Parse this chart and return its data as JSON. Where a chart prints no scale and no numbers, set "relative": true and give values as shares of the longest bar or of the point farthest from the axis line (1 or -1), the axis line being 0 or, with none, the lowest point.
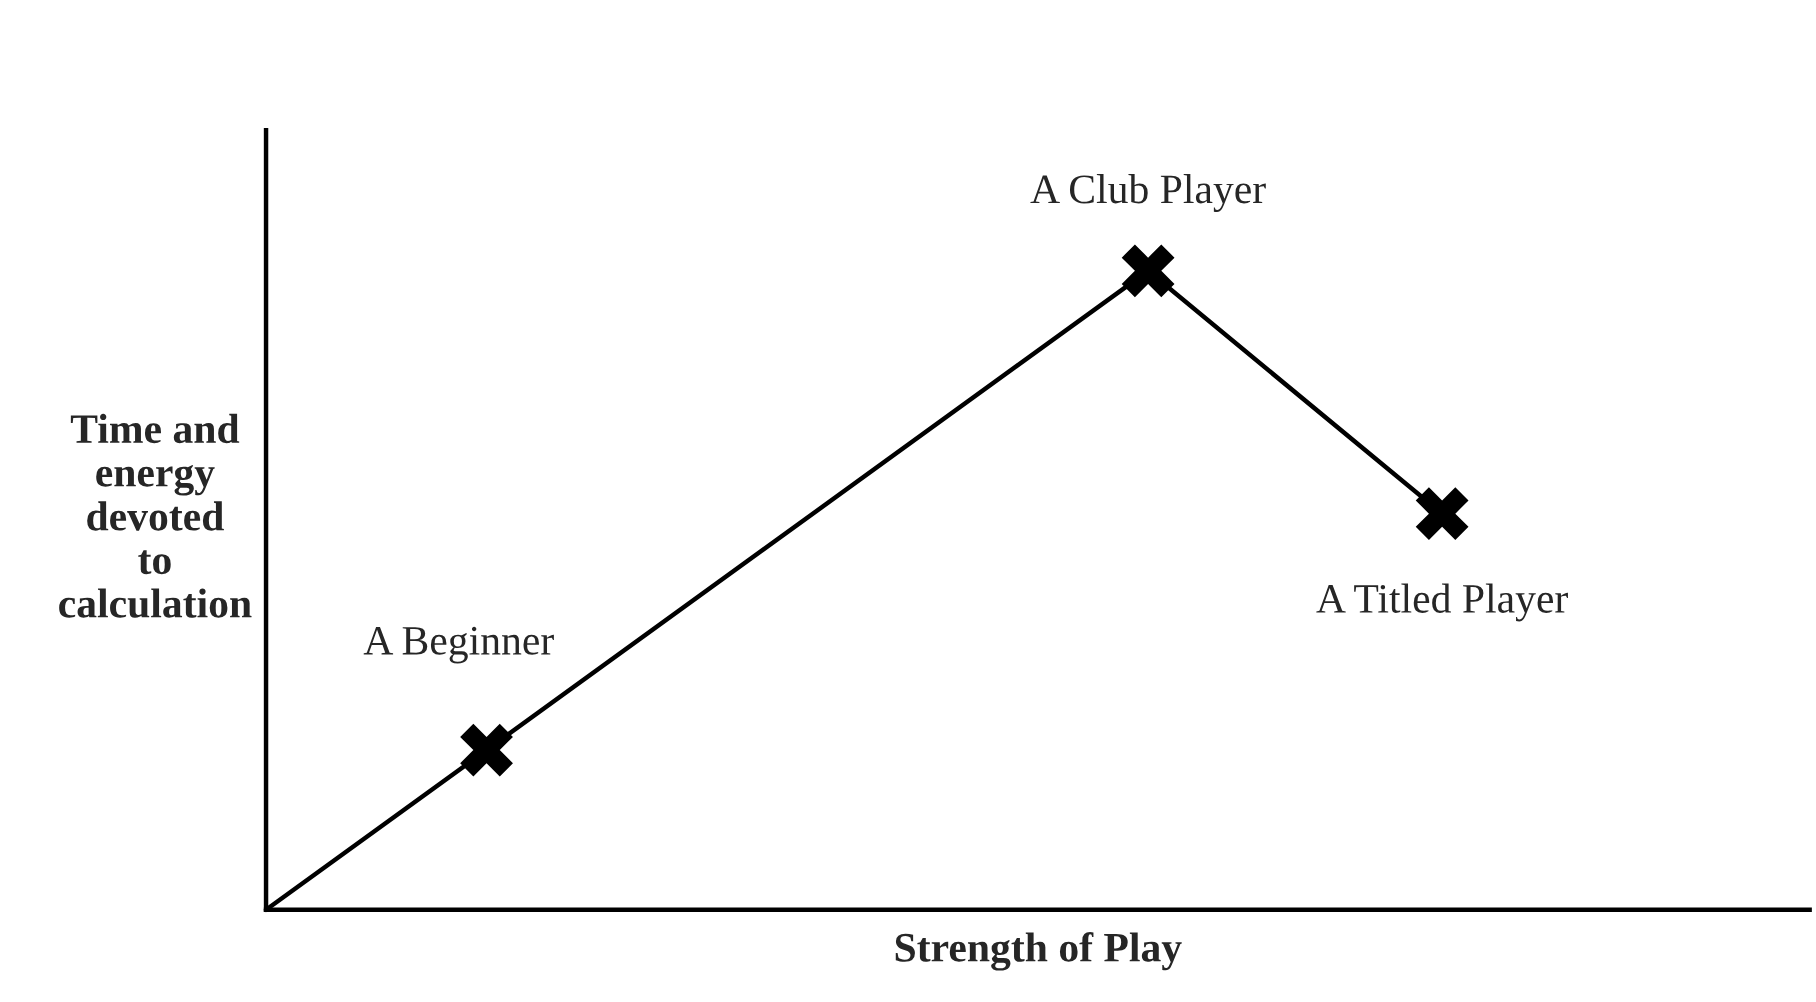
{
  "chart_data": {
    "type": "line",
    "relative": true,
    "xlabel": "Strength of Play",
    "ylabel": "Time and\nenergy\ndevoted\nto\ncalculation",
    "categories": [
      null,
      null,
      null,
      null,
      null,
      null,
      null,
      null,
      null,
      null,
      null,
      null,
      null,
      null,
      null,
      null,
      null,
      null,
      null,
      null,
      null,
      null
    ],
    "tick_labels": false,
    "marker": "cross",
    "series": [
      {
        "color": "#000000",
        "line_style": "solid",
        "values": [
          0,
          null,
          null,
          0.25,
          null,
          null,
          null,
          null,
          null,
          null,
          null,
          null,
          1,
          null,
          null,
          null,
          0.62,
          null,
          null,
          null,
          null,
          null
        ]
      }
    ],
    "annotations": [
      "A Beginner",
      "A Club Player",
      "A Titled Player"
    ]
  }
}
